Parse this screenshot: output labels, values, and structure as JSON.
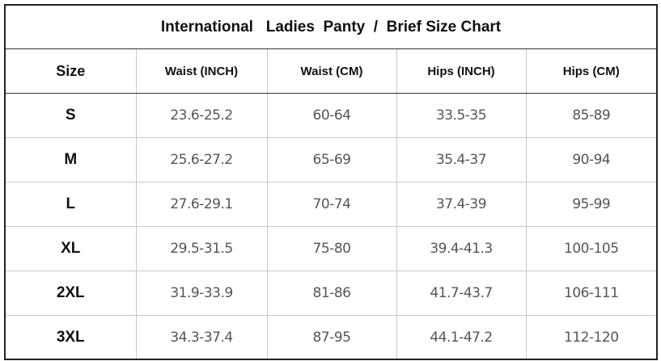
{
  "title": "International   Ladies  Panty  /  Brief Size Chart",
  "headers": [
    "Size",
    "Waist (INCH)",
    "Waist (CM)",
    "Hips (INCH)",
    "Hips (CM)"
  ],
  "rows": [
    [
      "S",
      "23.6-25.2",
      "60-64",
      "33.5-35",
      "85-89"
    ],
    [
      "M",
      "25.6-27.2",
      "65-69",
      "35.4-37",
      "90-94"
    ],
    [
      "L",
      "27.6-29.1",
      "70-74",
      "37.4-39",
      "95-99"
    ],
    [
      "XL",
      "29.5-31.5",
      "75-80",
      "39.4-41.3",
      "100-105"
    ],
    [
      "2XL",
      "31.9-33.9",
      "81-86",
      "41.7-43.7",
      "106-111"
    ],
    [
      "3XL",
      "34.3-37.4",
      "87-95",
      "44.1-47.2",
      "112-120"
    ]
  ]
}
